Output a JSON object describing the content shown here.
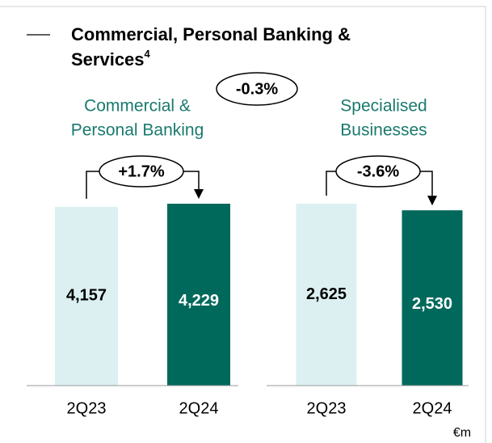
{
  "chart_data": {
    "type": "grouped-bar",
    "title_lines": [
      "Commercial, Personal Banking &",
      "Services"
    ],
    "title_footnote": "4",
    "overall_change": "-0.3%",
    "unit": "€m",
    "colors": [
      "#dcf0f2",
      "#00695c"
    ],
    "groups": [
      {
        "name_lines": [
          "Commercial &",
          "Personal Banking"
        ],
        "change": "+1.7%",
        "categories": [
          "2Q23",
          "2Q24"
        ],
        "values": [
          4157,
          4229
        ],
        "value_labels": [
          "4,157",
          "4,229"
        ]
      },
      {
        "name_lines": [
          "Specialised",
          "Businesses"
        ],
        "change": "-3.6%",
        "categories": [
          "2Q23",
          "2Q24"
        ],
        "values": [
          2625,
          2530
        ],
        "value_labels": [
          "2,625",
          "2,530"
        ]
      }
    ]
  }
}
